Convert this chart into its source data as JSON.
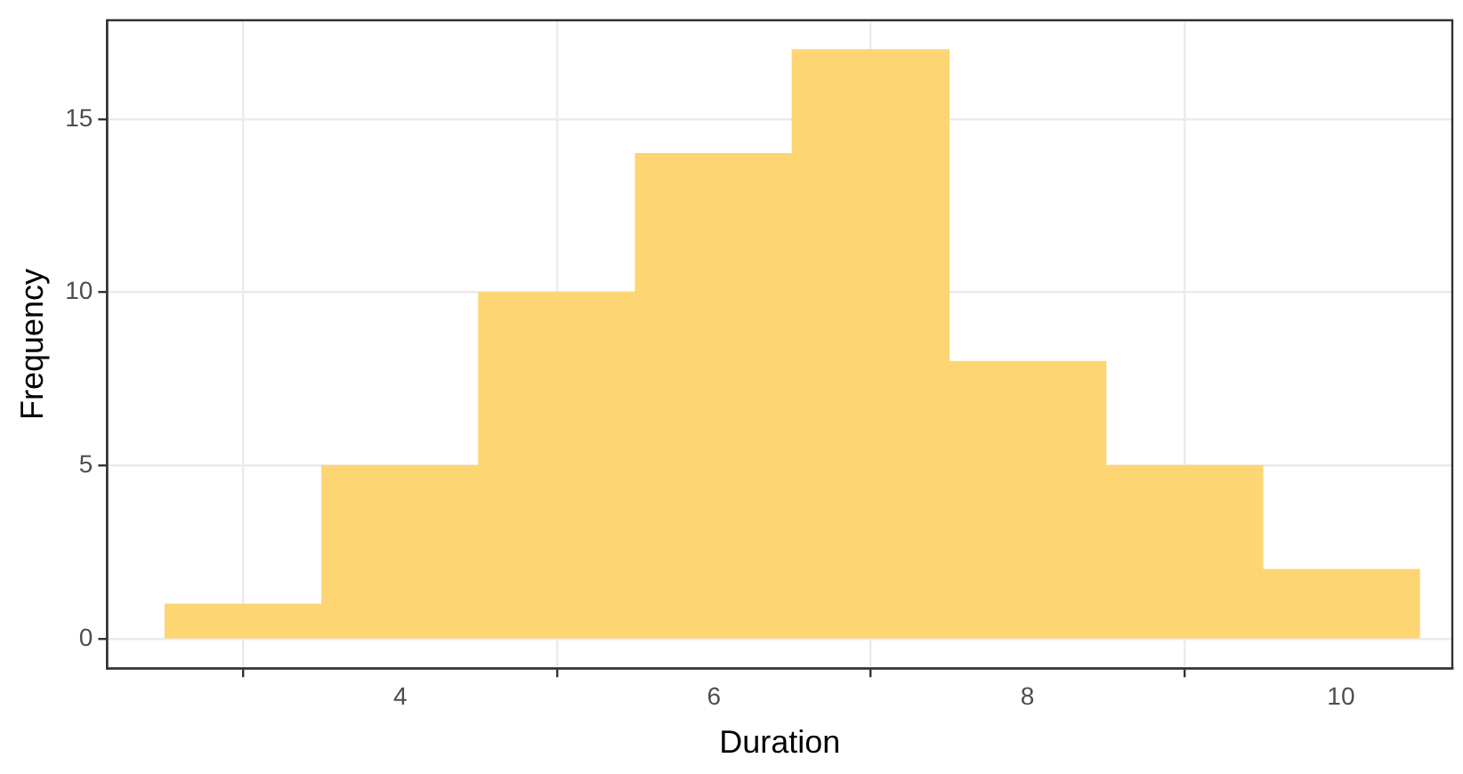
{
  "chart_data": {
    "type": "histogram",
    "xlabel": "Duration",
    "ylabel": "Frequency",
    "bins": [
      2.5,
      3.5,
      4.5,
      5.5,
      6.5,
      7.5,
      8.5,
      9.5,
      10.5
    ],
    "values": [
      1,
      5,
      10,
      14,
      17,
      8,
      5,
      2
    ],
    "color": "#fdd673",
    "xlim": [
      2.13,
      10.71
    ],
    "xticks": [
      4,
      6,
      8,
      10
    ],
    "ylim": [
      -0.85,
      17.85
    ],
    "yticks": [
      0,
      5,
      10,
      15
    ],
    "grid": true,
    "legend": false
  }
}
